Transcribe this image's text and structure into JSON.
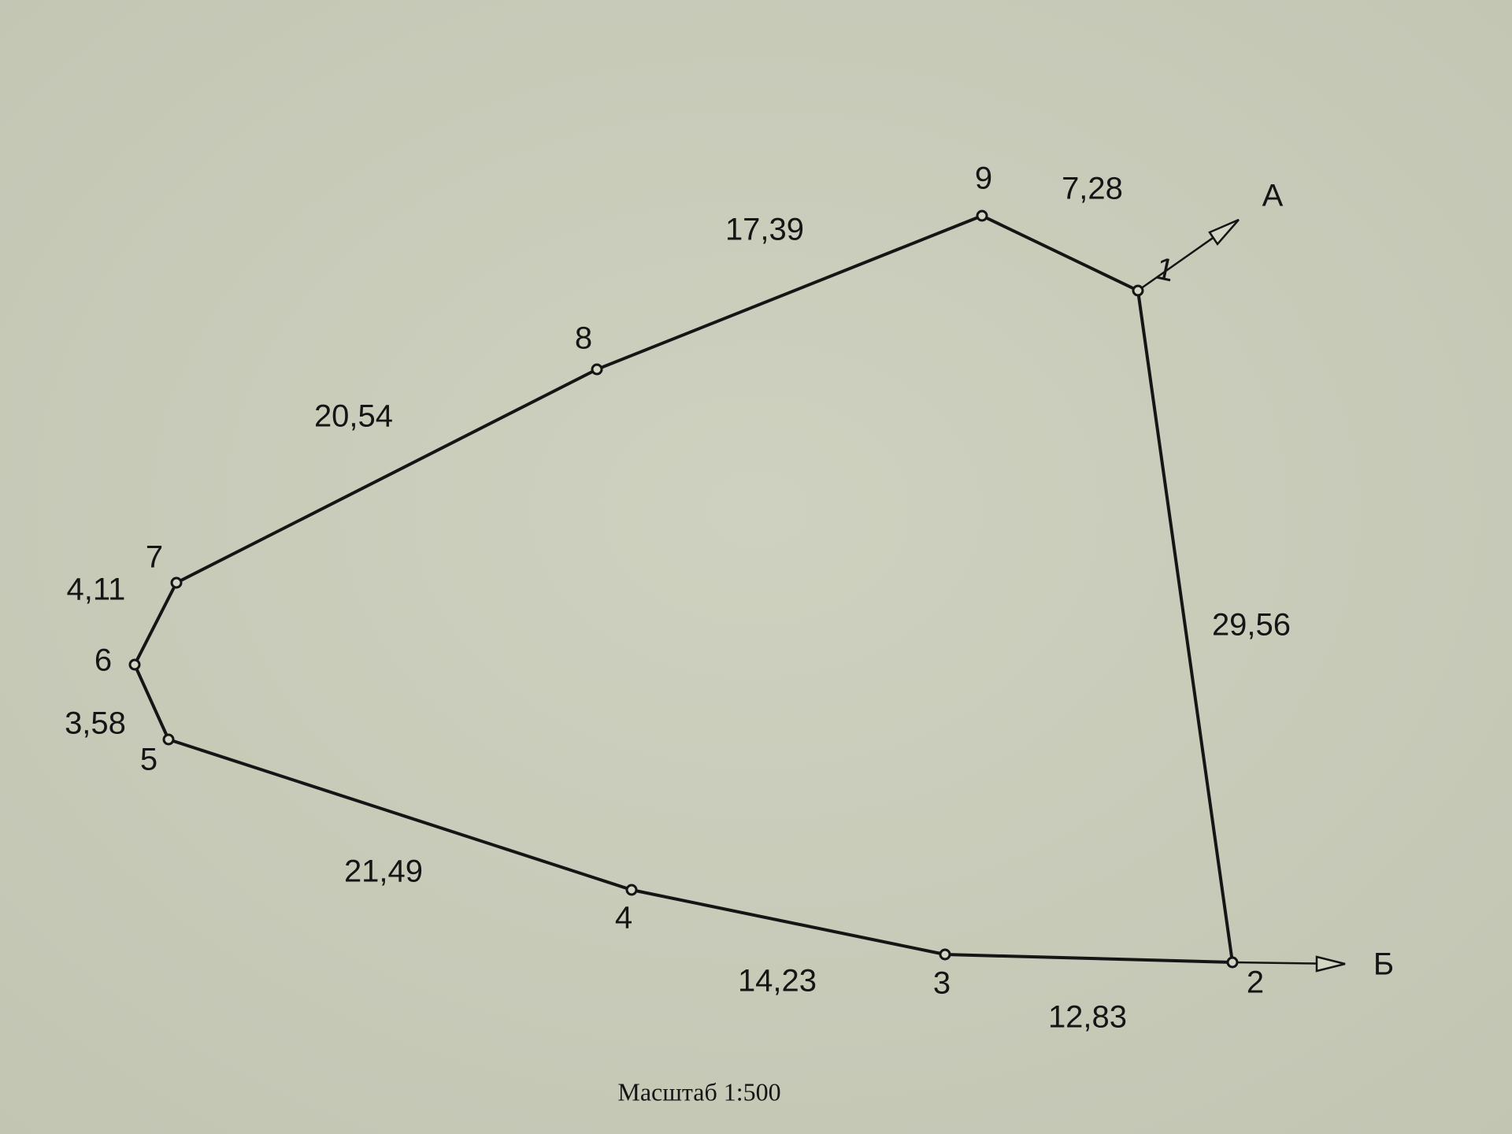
{
  "diagram": {
    "points": [
      "1",
      "2",
      "3",
      "4",
      "5",
      "6",
      "7",
      "8",
      "9"
    ],
    "edges": [
      {
        "from": "1",
        "to": "2",
        "length": "29,56"
      },
      {
        "from": "2",
        "to": "3",
        "length": "12,83"
      },
      {
        "from": "3",
        "to": "4",
        "length": "14,23"
      },
      {
        "from": "4",
        "to": "5",
        "length": "21,49"
      },
      {
        "from": "5",
        "to": "6",
        "length": "3,58"
      },
      {
        "from": "6",
        "to": "7",
        "length": "4,11"
      },
      {
        "from": "7",
        "to": "8",
        "length": "20,54"
      },
      {
        "from": "8",
        "to": "9",
        "length": "17,39"
      },
      {
        "from": "9",
        "to": "1",
        "length": "7,28"
      }
    ],
    "directions": {
      "a": "А",
      "b": "Б"
    },
    "scale": "Масштаб 1:500",
    "colors": {
      "paper": "#c9cbb9",
      "ink": "#151515"
    }
  }
}
